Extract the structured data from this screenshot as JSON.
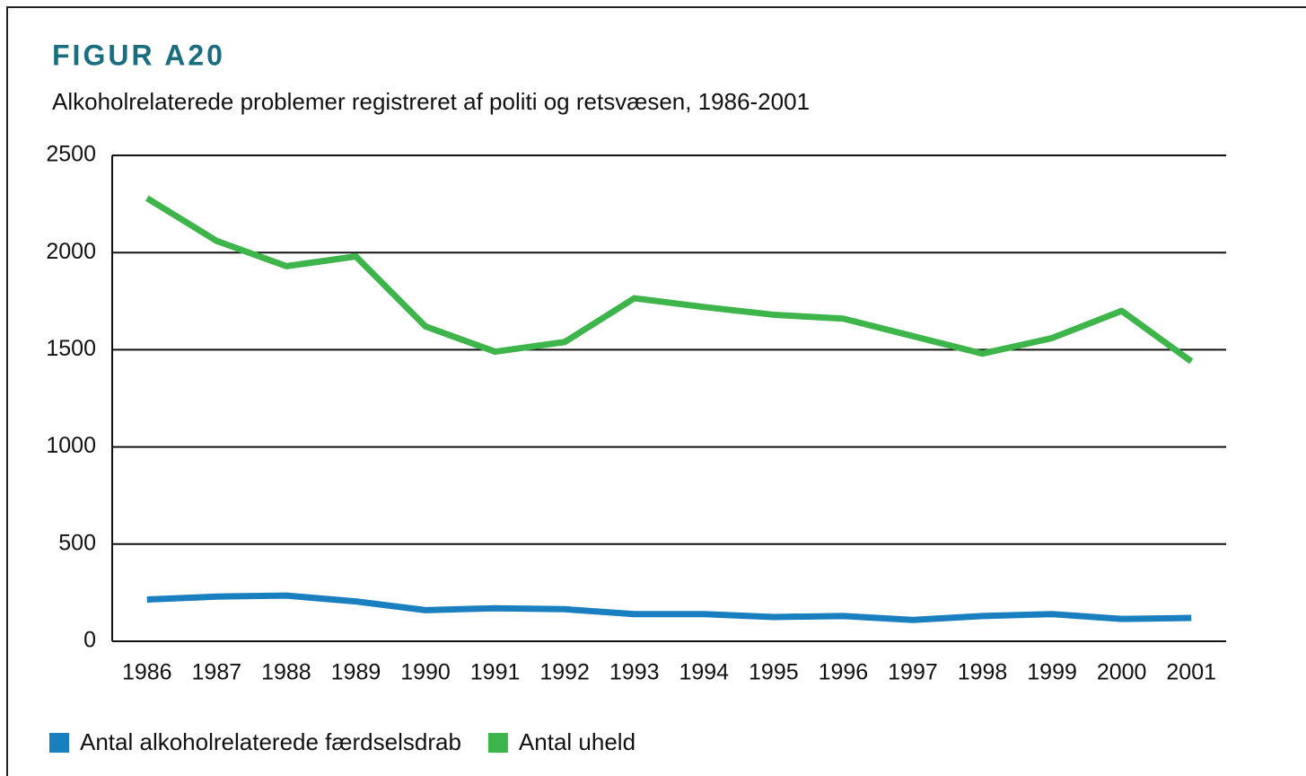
{
  "chart_data": {
    "type": "line",
    "title": "FIGUR A20",
    "subtitle": "Alkoholrelaterede problemer registreret af politi og retsvæsen, 1986-2001",
    "categories": [
      "1986",
      "1987",
      "1988",
      "1989",
      "1990",
      "1991",
      "1992",
      "1993",
      "1994",
      "1995",
      "1996",
      "1997",
      "1998",
      "1999",
      "2000",
      "2001"
    ],
    "series": [
      {
        "name": "Antal alkoholrelaterede færdselsdrab",
        "color": "#1a7fbf",
        "values": [
          215,
          230,
          235,
          205,
          160,
          170,
          165,
          140,
          140,
          125,
          130,
          110,
          130,
          140,
          115,
          120
        ]
      },
      {
        "name": "Antal uheld",
        "color": "#3db54a",
        "values": [
          2280,
          2060,
          1930,
          1980,
          1620,
          1490,
          1540,
          1765,
          1720,
          1680,
          1660,
          1570,
          1480,
          1560,
          1700,
          1440
        ]
      }
    ],
    "ylim": [
      0,
      2500
    ],
    "yticks": [
      0,
      500,
      1000,
      1500,
      2000,
      2500
    ],
    "grid": true,
    "legend": "bottom"
  }
}
